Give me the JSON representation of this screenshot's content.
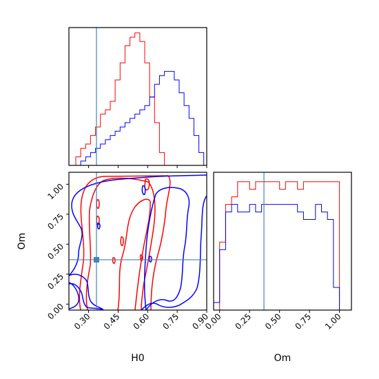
{
  "chart_data": {
    "type": "corner",
    "parameters": [
      "H0",
      "Om"
    ],
    "truth": {
      "H0": 0.34,
      "Om": 0.37
    },
    "colors": {
      "red": "#ff0000",
      "blue": "#0000ff",
      "truth": "#4682b4"
    },
    "grid": false,
    "ticks": {
      "H0": [
        "0.30",
        "0.45",
        "0.60",
        "0.75",
        "0.90"
      ],
      "Om": [
        "0.00",
        "0.25",
        "0.50",
        "0.75",
        "1.00"
      ]
    },
    "H0_range": [
      0.2,
      0.9
    ],
    "Om_range": [
      -0.05,
      1.1
    ],
    "hist_H0": {
      "bin_edges": [
        0.21,
        0.235,
        0.26,
        0.285,
        0.31,
        0.335,
        0.36,
        0.385,
        0.41,
        0.435,
        0.46,
        0.485,
        0.51,
        0.535,
        0.56,
        0.585,
        0.61,
        0.635,
        0.66,
        0.685,
        0.71,
        0.735,
        0.76,
        0.785,
        0.81,
        0.835,
        0.86,
        0.885
      ],
      "series": [
        {
          "color": "red",
          "counts": [
            0,
            2,
            4,
            5,
            7,
            9,
            12,
            13,
            15,
            20,
            24,
            28,
            30,
            31,
            29,
            24,
            16,
            10,
            3,
            0,
            0,
            0,
            0,
            0,
            0,
            0,
            0
          ]
        },
        {
          "color": "blue",
          "counts": [
            0,
            0,
            1,
            2,
            3,
            4,
            5,
            6,
            7,
            8,
            9,
            10,
            11,
            12,
            13,
            14,
            16,
            19,
            21,
            22,
            22,
            20,
            17,
            14,
            11,
            7,
            3
          ]
        }
      ]
    },
    "hist_Om": {
      "bin_edges": [
        -0.05,
        0.0,
        0.05,
        0.1,
        0.15,
        0.2,
        0.25,
        0.3,
        0.35,
        0.4,
        0.45,
        0.5,
        0.55,
        0.6,
        0.65,
        0.7,
        0.75,
        0.8,
        0.85,
        0.9,
        0.95,
        1.0,
        1.05,
        1.1
      ],
      "series": [
        {
          "color": "red",
          "counts": [
            0,
            9,
            14,
            15,
            17,
            17,
            16,
            17,
            17,
            17,
            17,
            16,
            17,
            17,
            16,
            17,
            17,
            17,
            17,
            17,
            17,
            0,
            0
          ]
        },
        {
          "color": "blue",
          "counts": [
            1,
            8,
            13,
            14,
            13,
            13,
            14,
            13,
            14,
            14,
            14,
            14,
            14,
            14,
            13,
            12,
            12,
            14,
            13,
            12,
            3,
            0,
            0
          ]
        }
      ]
    }
  }
}
